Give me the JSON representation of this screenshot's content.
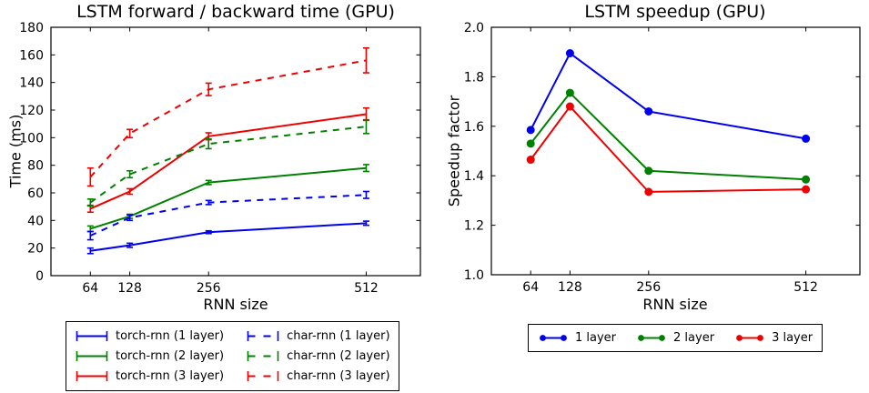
{
  "colors": {
    "blue": "#0000ee",
    "green": "#008000",
    "red": "#ee0000",
    "axis": "#000000",
    "background": "#ffffff"
  },
  "chart_data": [
    {
      "type": "line",
      "title": "LSTM forward / backward time (GPU)",
      "xlabel": "RNN size",
      "ylabel": "Time (ms)",
      "x": [
        64,
        128,
        256,
        512
      ],
      "xtick_labels": [
        "64",
        "128",
        "256",
        "512"
      ],
      "xlim": [
        0,
        600
      ],
      "ylim": [
        0,
        180
      ],
      "yticks": [
        0,
        20,
        40,
        60,
        80,
        100,
        120,
        140,
        160,
        180
      ],
      "ytick_labels": [
        "0",
        "20",
        "40",
        "60",
        "80",
        "100",
        "120",
        "140",
        "160",
        "180"
      ],
      "grid": false,
      "legend_position": "below-left",
      "legend_columns": 2,
      "series": [
        {
          "name": "torch-rnn (1 layer)",
          "color": "#0000ee",
          "style": "solid",
          "marker": "none",
          "values": [
            18,
            22,
            31.5,
            38
          ],
          "yerr": [
            2,
            1.5,
            1,
            1.5
          ]
        },
        {
          "name": "torch-rnn (2 layer)",
          "color": "#008000",
          "style": "solid",
          "marker": "none",
          "values": [
            34,
            43,
            67.5,
            78
          ],
          "yerr": [
            2,
            1.5,
            1.5,
            2.5
          ]
        },
        {
          "name": "torch-rnn (3 layer)",
          "color": "#ee0000",
          "style": "solid",
          "marker": "none",
          "values": [
            48.5,
            61,
            101,
            117
          ],
          "yerr": [
            2.5,
            2,
            2.5,
            4.5
          ]
        },
        {
          "name": "char-rnn (1 layer)",
          "color": "#0000ee",
          "style": "dashed",
          "marker": "none",
          "values": [
            29,
            42,
            53,
            58.5
          ],
          "yerr": [
            3,
            2,
            1.5,
            2.5
          ]
        },
        {
          "name": "char-rnn (2 layer)",
          "color": "#008000",
          "style": "dashed",
          "marker": "none",
          "values": [
            53,
            73.5,
            95.5,
            108
          ],
          "yerr": [
            2.5,
            2.5,
            3.5,
            5
          ]
        },
        {
          "name": "char-rnn (3 layer)",
          "color": "#ee0000",
          "style": "dashed",
          "marker": "none",
          "values": [
            71.5,
            103,
            135,
            156
          ],
          "yerr": [
            6.5,
            3,
            4.5,
            9
          ]
        }
      ]
    },
    {
      "type": "line",
      "title": "LSTM speedup (GPU)",
      "xlabel": "RNN size",
      "ylabel": "Speedup factor",
      "x": [
        64,
        128,
        256,
        512
      ],
      "xtick_labels": [
        "64",
        "128",
        "256",
        "512"
      ],
      "xlim": [
        0,
        600
      ],
      "ylim": [
        1.0,
        2.0
      ],
      "yticks": [
        1.0,
        1.2,
        1.4,
        1.6,
        1.8,
        2.0
      ],
      "ytick_labels": [
        "1.0",
        "1.2",
        "1.4",
        "1.6",
        "1.8",
        "2.0"
      ],
      "grid": false,
      "legend_position": "below-center",
      "legend_columns": 3,
      "series": [
        {
          "name": "1 layer",
          "color": "#0000ee",
          "style": "solid",
          "marker": "circle",
          "values": [
            1.585,
            1.895,
            1.66,
            1.55
          ]
        },
        {
          "name": "2 layer",
          "color": "#008000",
          "style": "solid",
          "marker": "circle",
          "values": [
            1.53,
            1.735,
            1.42,
            1.385
          ]
        },
        {
          "name": "3 layer",
          "color": "#ee0000",
          "style": "solid",
          "marker": "circle",
          "values": [
            1.465,
            1.68,
            1.335,
            1.345
          ]
        }
      ]
    }
  ]
}
